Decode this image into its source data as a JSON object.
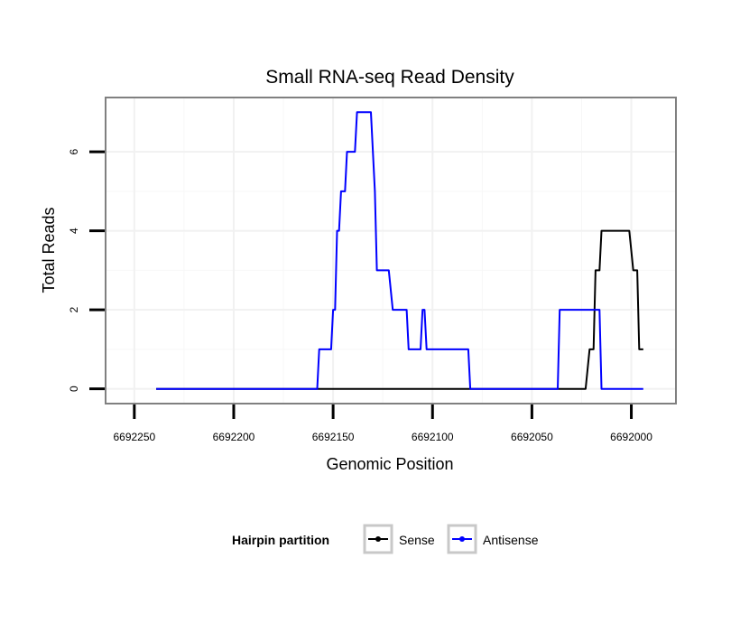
{
  "chart_data": {
    "type": "line",
    "title": "Small RNA-seq Read Density",
    "xlabel": "Genomic Position",
    "ylabel": "Total Reads",
    "x_reversed": true,
    "xlim": [
      6692264,
      6691978
    ],
    "ylim": [
      -0.35,
      7.35
    ],
    "x_ticks": [
      6692250,
      6692200,
      6692150,
      6692100,
      6692050,
      6692000
    ],
    "x_tick_labels": [
      "6692250",
      "6692200",
      "6692150",
      "6692100",
      "6692050",
      "6692000"
    ],
    "y_ticks": [
      0,
      2,
      4,
      6
    ],
    "y_tick_labels": [
      "0",
      "2",
      "4",
      "6"
    ],
    "grid": true,
    "legend": {
      "title": "Hairpin partition",
      "position": "bottom",
      "entries": [
        "Sense",
        "Antisense"
      ]
    },
    "series": [
      {
        "name": "Sense",
        "color": "#000000",
        "points": [
          [
            6692239,
            0
          ],
          [
            6692023,
            0
          ],
          [
            6692021,
            1
          ],
          [
            6692019,
            1
          ],
          [
            6692018,
            3
          ],
          [
            6692016,
            3
          ],
          [
            6692015,
            4
          ],
          [
            6692001,
            4
          ],
          [
            6691999,
            3
          ],
          [
            6691997,
            3
          ],
          [
            6691996,
            1
          ],
          [
            6691994,
            1
          ]
        ]
      },
      {
        "name": "Antisense",
        "color": "#0000ff",
        "points": [
          [
            6692239,
            0
          ],
          [
            6692158,
            0
          ],
          [
            6692157,
            1
          ],
          [
            6692151,
            1
          ],
          [
            6692150,
            2
          ],
          [
            6692149,
            2
          ],
          [
            6692148,
            4
          ],
          [
            6692147,
            4
          ],
          [
            6692146,
            5
          ],
          [
            6692144,
            5
          ],
          [
            6692143,
            6
          ],
          [
            6692139,
            6
          ],
          [
            6692138,
            7
          ],
          [
            6692131,
            7
          ],
          [
            6692129,
            5
          ],
          [
            6692128,
            3
          ],
          [
            6692122,
            3
          ],
          [
            6692120,
            2
          ],
          [
            6692113,
            2
          ],
          [
            6692112,
            1
          ],
          [
            6692106,
            1
          ],
          [
            6692105,
            2
          ],
          [
            6692104,
            2
          ],
          [
            6692103,
            1
          ],
          [
            6692082,
            1
          ],
          [
            6692081,
            0
          ],
          [
            6692037,
            0
          ],
          [
            6692036,
            2
          ],
          [
            6692016,
            2
          ],
          [
            6692015,
            0
          ],
          [
            6691994,
            0
          ]
        ]
      }
    ]
  }
}
